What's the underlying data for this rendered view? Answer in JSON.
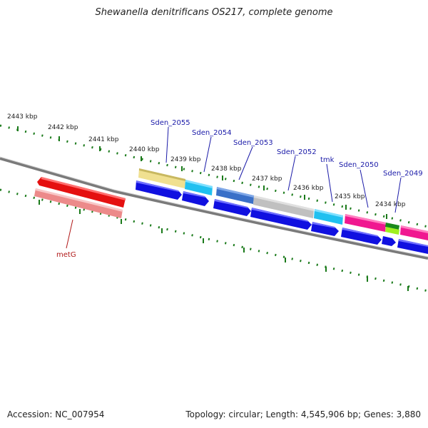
{
  "title": "Shewanella denitrificans OS217, complete genome",
  "footer": {
    "accession": "Accession: NC_007954",
    "topology": "Topology: circular; Length: 4,545,906 bp; Genes: 3,880"
  },
  "scale_labels": [
    "2443 kbp",
    "2442 kbp",
    "2441 kbp",
    "2440 kbp",
    "2439 kbp",
    "2438 kbp",
    "2437 kbp",
    "2436 kbp",
    "2435 kbp",
    "2434 kbp"
  ],
  "gene_labels": [
    "Sden_2055",
    "Sden_2054",
    "Sden_2053",
    "Sden_2052",
    "tmk",
    "Sden_2050",
    "Sden_2049",
    "metG"
  ],
  "colors": {
    "backbone": "#777777",
    "tick": "#1a7a1a",
    "label_blue": "#1a1aa8",
    "label_red": "#b01818",
    "arrow_blue": "#1010e0"
  }
}
